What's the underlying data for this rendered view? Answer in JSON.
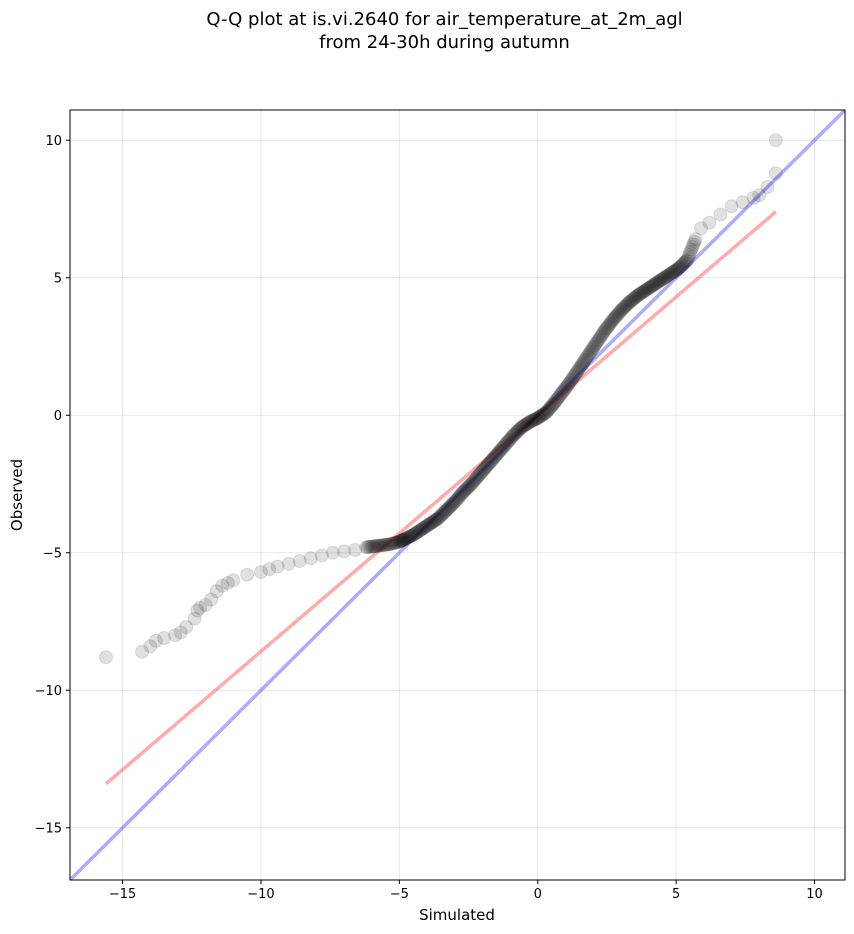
{
  "chart_data": {
    "type": "scatter",
    "title_line1": "Q-Q plot at is.vi.2640 for air_temperature_at_2m_agl",
    "title_line2": "from 24-30h during autumn",
    "xlabel": "Simulated",
    "ylabel": "Observed",
    "xlim": [
      -16.9,
      11.1
    ],
    "ylim": [
      -16.9,
      11.1
    ],
    "xticks": [
      -15,
      -10,
      -5,
      0,
      5,
      10
    ],
    "yticks": [
      10,
      5,
      0,
      -5,
      -10,
      -15
    ],
    "xtick_labels": [
      "−15",
      "−10",
      "−5",
      "0",
      "5",
      "10"
    ],
    "ytick_labels": [
      "10",
      "5",
      "0",
      "−5",
      "−10",
      "−15"
    ],
    "grid": true,
    "quantile_points": {
      "color": "#000000",
      "x": [
        -15.6,
        -14.3,
        -14.0,
        -13.8,
        -13.5,
        -13.1,
        -12.9,
        -12.7,
        -12.4,
        -12.3,
        -12.2,
        -12.0,
        -11.8,
        -11.6,
        -11.4,
        -11.2,
        -11.0,
        -10.5,
        -10.0,
        -9.7,
        -9.4,
        -9.0,
        -8.6,
        -8.2,
        -7.8,
        -7.4,
        -7.0,
        -6.6,
        -6.2,
        -5.8,
        -5.4,
        -5.0,
        -4.8,
        -4.5,
        -4.2,
        -3.9,
        -3.6,
        -3.3,
        -3.0,
        -2.7,
        -2.4,
        -2.1,
        -1.8,
        -1.5,
        -1.2,
        -0.9,
        -0.6,
        -0.3,
        0.0,
        0.3,
        0.6,
        0.9,
        1.2,
        1.5,
        1.8,
        2.1,
        2.4,
        2.7,
        3.0,
        3.3,
        3.6,
        3.9,
        4.2,
        4.5,
        4.8,
        5.1,
        5.4,
        5.7,
        5.9,
        6.2,
        6.6,
        7.0,
        7.4,
        7.8,
        8.0,
        8.3,
        8.6
      ],
      "y": [
        -8.8,
        -8.6,
        -8.4,
        -8.2,
        -8.1,
        -8.0,
        -7.9,
        -7.7,
        -7.4,
        -7.1,
        -7.0,
        -6.9,
        -6.7,
        -6.4,
        -6.2,
        -6.1,
        -6.0,
        -5.8,
        -5.7,
        -5.6,
        -5.5,
        -5.4,
        -5.3,
        -5.2,
        -5.1,
        -5.0,
        -4.95,
        -4.9,
        -4.8,
        -4.75,
        -4.7,
        -4.6,
        -4.5,
        -4.35,
        -4.15,
        -3.95,
        -3.75,
        -3.45,
        -3.15,
        -2.8,
        -2.5,
        -2.15,
        -1.8,
        -1.45,
        -1.1,
        -0.75,
        -0.45,
        -0.25,
        -0.1,
        0.1,
        0.45,
        0.85,
        1.25,
        1.7,
        2.15,
        2.6,
        3.05,
        3.45,
        3.8,
        4.1,
        4.35,
        4.55,
        4.75,
        4.95,
        5.15,
        5.35,
        5.65,
        6.4,
        6.8,
        7.0,
        7.3,
        7.6,
        7.75,
        7.9,
        8.0,
        8.3,
        8.8
      ],
      "outliers": [
        {
          "x": 8.6,
          "y": 10.0
        }
      ]
    },
    "reference_lines": [
      {
        "color": "#0000ff",
        "opacity": 0.33,
        "x": [
          -16.9,
          11.1
        ],
        "y": [
          -16.9,
          11.1
        ]
      },
      {
        "color": "#ff0000",
        "opacity": 0.33,
        "x": [
          -15.6,
          8.6
        ],
        "y": [
          -13.4,
          7.4
        ]
      }
    ]
  }
}
